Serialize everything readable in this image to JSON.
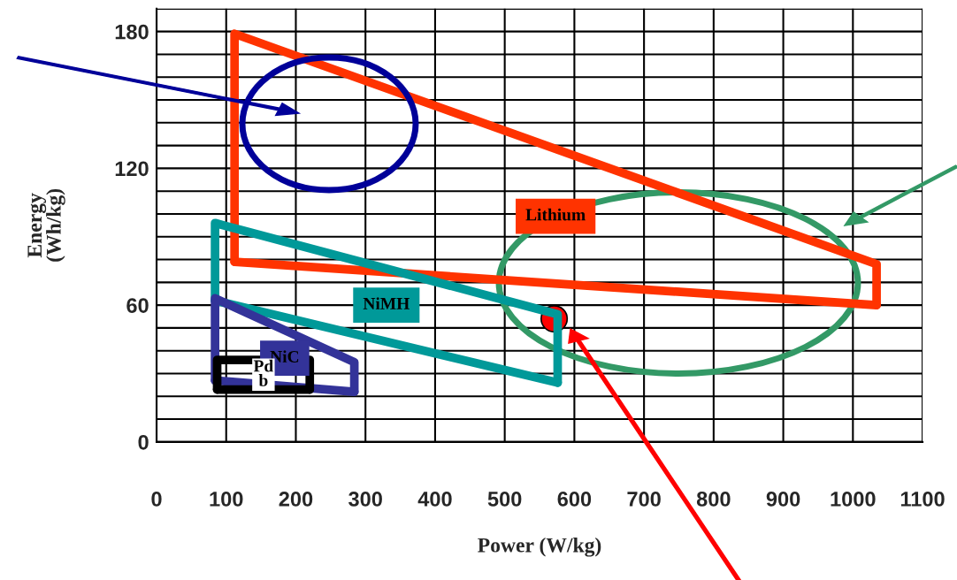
{
  "chart_data": {
    "type": "line",
    "xlabel": "Power (W/kg)",
    "ylabel": "Energy\n(Wh/kg)",
    "xlim": [
      0,
      1100
    ],
    "ylim": [
      0,
      190
    ],
    "xticks": [
      0,
      100,
      200,
      300,
      400,
      500,
      600,
      700,
      800,
      900,
      1000,
      1100
    ],
    "yticks": [
      0,
      {
        "value": 10,
        "label": null
      },
      {
        "value": 20,
        "label": null
      },
      {
        "value": 30,
        "label": null
      },
      {
        "value": 40,
        "label": null
      },
      {
        "value": 50,
        "label": null
      },
      60,
      {
        "value": 70,
        "label": null
      },
      {
        "value": 80,
        "label": null
      },
      {
        "value": 90,
        "label": null
      },
      {
        "value": 100,
        "label": null
      },
      {
        "value": 110,
        "label": null
      },
      120,
      {
        "value": 130,
        "label": null
      },
      {
        "value": 140,
        "label": null
      },
      {
        "value": 150,
        "label": null
      },
      {
        "value": 160,
        "label": null
      },
      {
        "value": 170,
        "label": null
      },
      180,
      {
        "value": 190,
        "label": null
      }
    ],
    "grid": true,
    "legend": false,
    "series": [
      {
        "name": "Lithium",
        "color": "#ff3300",
        "x": [
          112,
          112,
          1034,
          1034
        ],
        "values": [
          79,
          179,
          78,
          60
        ]
      },
      {
        "color": "#ff3300",
        "x": [
          112,
          1034
        ],
        "values": [
          79,
          60
        ]
      },
      {
        "name": "NiMH",
        "color": "#009999",
        "x": [
          84,
          84,
          576,
          576
        ],
        "values": [
          62,
          96,
          56,
          26
        ]
      },
      {
        "color": "#009999",
        "x": [
          84,
          576
        ],
        "values": [
          62,
          26
        ]
      },
      {
        "name": "NiC",
        "color": "#333399",
        "x": [
          84,
          84,
          284,
          284
        ],
        "values": [
          27,
          63,
          35,
          22
        ]
      },
      {
        "color": "#333399",
        "x": [
          84,
          284
        ],
        "values": [
          27,
          22
        ]
      },
      {
        "name": "Pd\nb",
        "color": "#000000",
        "x": [
          87,
          87,
          220,
          220
        ],
        "values": [
          23,
          36,
          36,
          23
        ]
      },
      {
        "color": "#000000",
        "x": [
          87,
          220
        ],
        "values": [
          23,
          23
        ]
      },
      {
        "type": "scatter",
        "color": "#ff0000",
        "marker": "circle",
        "x": [
          571
        ],
        "values": [
          54
        ]
      }
    ]
  }
}
